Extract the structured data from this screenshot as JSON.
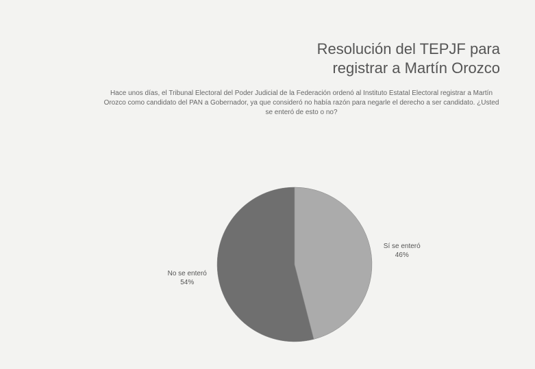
{
  "chart_data": {
    "type": "pie",
    "title": "Resolución del TEPJF para registrar a Martín Orozco",
    "subtitle": "Hace unos días, el Tribunal Electoral del Poder Judicial de la Federación ordenó al Instituto Estatal Electoral registrar a Martín Orozco como candidato del PAN a Gobernador, ya que consideró no había razón para negarle el derecho a ser candidato. ¿Usted se enteró de esto o no?",
    "categories": [
      "No se enteró",
      "Sí se enteró"
    ],
    "values": [
      54,
      46
    ],
    "value_labels": [
      "54%",
      "46%"
    ],
    "colors": [
      "#6f6f6f",
      "#ababab"
    ]
  }
}
